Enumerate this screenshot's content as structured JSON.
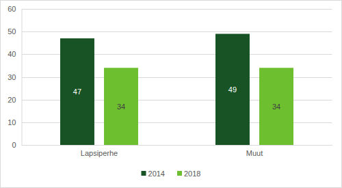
{
  "chart_data": {
    "type": "bar",
    "categories": [
      "Lapsiperhe",
      "Muut"
    ],
    "series": [
      {
        "name": "2014",
        "color": "#175324",
        "values": [
          47,
          49
        ]
      },
      {
        "name": "2018",
        "color": "#6ebf30",
        "values": [
          34,
          34
        ]
      }
    ],
    "ylim": [
      0,
      60
    ],
    "yticks": [
      0,
      10,
      20,
      30,
      40,
      50,
      60
    ],
    "grid": true,
    "data_labels": true,
    "legend": "bottom"
  }
}
